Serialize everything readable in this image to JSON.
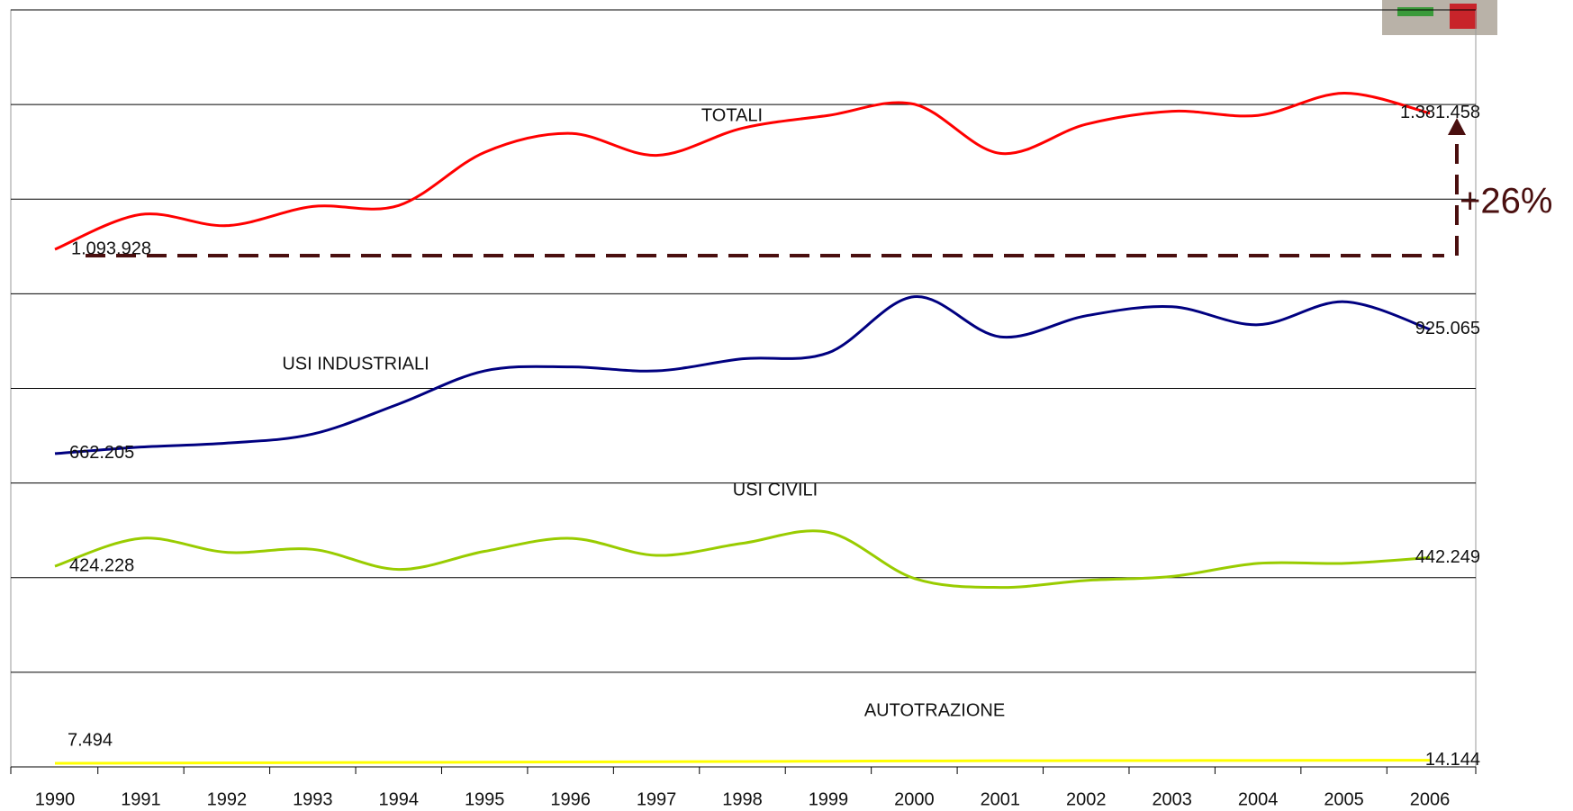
{
  "chart_data": {
    "type": "line",
    "categories": [
      "1990",
      "1991",
      "1992",
      "1993",
      "1994",
      "1995",
      "1996",
      "1997",
      "1998",
      "1999",
      "2000",
      "2001",
      "2002",
      "2003",
      "2004",
      "2005",
      "2006"
    ],
    "series": [
      {
        "name": "TOTALI",
        "color": "#ff0000",
        "values": [
          1093928,
          1167600,
          1144000,
          1184500,
          1186600,
          1299000,
          1339000,
          1292600,
          1350000,
          1377000,
          1400700,
          1296800,
          1358300,
          1385800,
          1377000,
          1424000,
          1381458
        ],
        "value_labels": [
          "1.093.928",
          null,
          null,
          null,
          null,
          null,
          null,
          null,
          null,
          null,
          null,
          null,
          null,
          null,
          null,
          null,
          "1.381.458"
        ]
      },
      {
        "name": "USI INDUSTRIALI",
        "color": "#000080",
        "values": [
          662205,
          676000,
          684400,
          703500,
          767000,
          837000,
          845500,
          837000,
          862500,
          875200,
          993800,
          909000,
          953500,
          972600,
          934500,
          983200,
          925065
        ],
        "value_labels": [
          "662.205",
          null,
          null,
          null,
          null,
          null,
          null,
          null,
          null,
          null,
          null,
          null,
          null,
          null,
          null,
          null,
          "925.065"
        ]
      },
      {
        "name": "USI CIVILI",
        "color": "#99cc00",
        "values": [
          424228,
          483100,
          453500,
          459800,
          417400,
          455600,
          483100,
          447100,
          472500,
          495800,
          398400,
          379300,
          394100,
          402600,
          430200,
          430200,
          442249
        ],
        "value_labels": [
          "424.228",
          null,
          null,
          null,
          null,
          null,
          null,
          null,
          null,
          null,
          null,
          null,
          null,
          null,
          null,
          null,
          "442.249"
        ]
      },
      {
        "name": "AUTOTRAZIONE",
        "color": "#ffff00",
        "values": [
          7494,
          8000,
          8500,
          9000,
          9500,
          10000,
          10500,
          11000,
          11500,
          12000,
          12500,
          13000,
          13200,
          13400,
          13600,
          13900,
          14144
        ],
        "value_labels": [
          "7.494",
          null,
          null,
          null,
          null,
          null,
          null,
          null,
          null,
          null,
          null,
          null,
          null,
          null,
          null,
          null,
          "14.144"
        ]
      }
    ],
    "ylim": [
      0,
      1600000
    ],
    "yticks": [
      0,
      200000,
      400000,
      600000,
      800000,
      1000000,
      1200000,
      1400000,
      1600000
    ],
    "grid": true,
    "annotations": [
      "+26%"
    ]
  }
}
